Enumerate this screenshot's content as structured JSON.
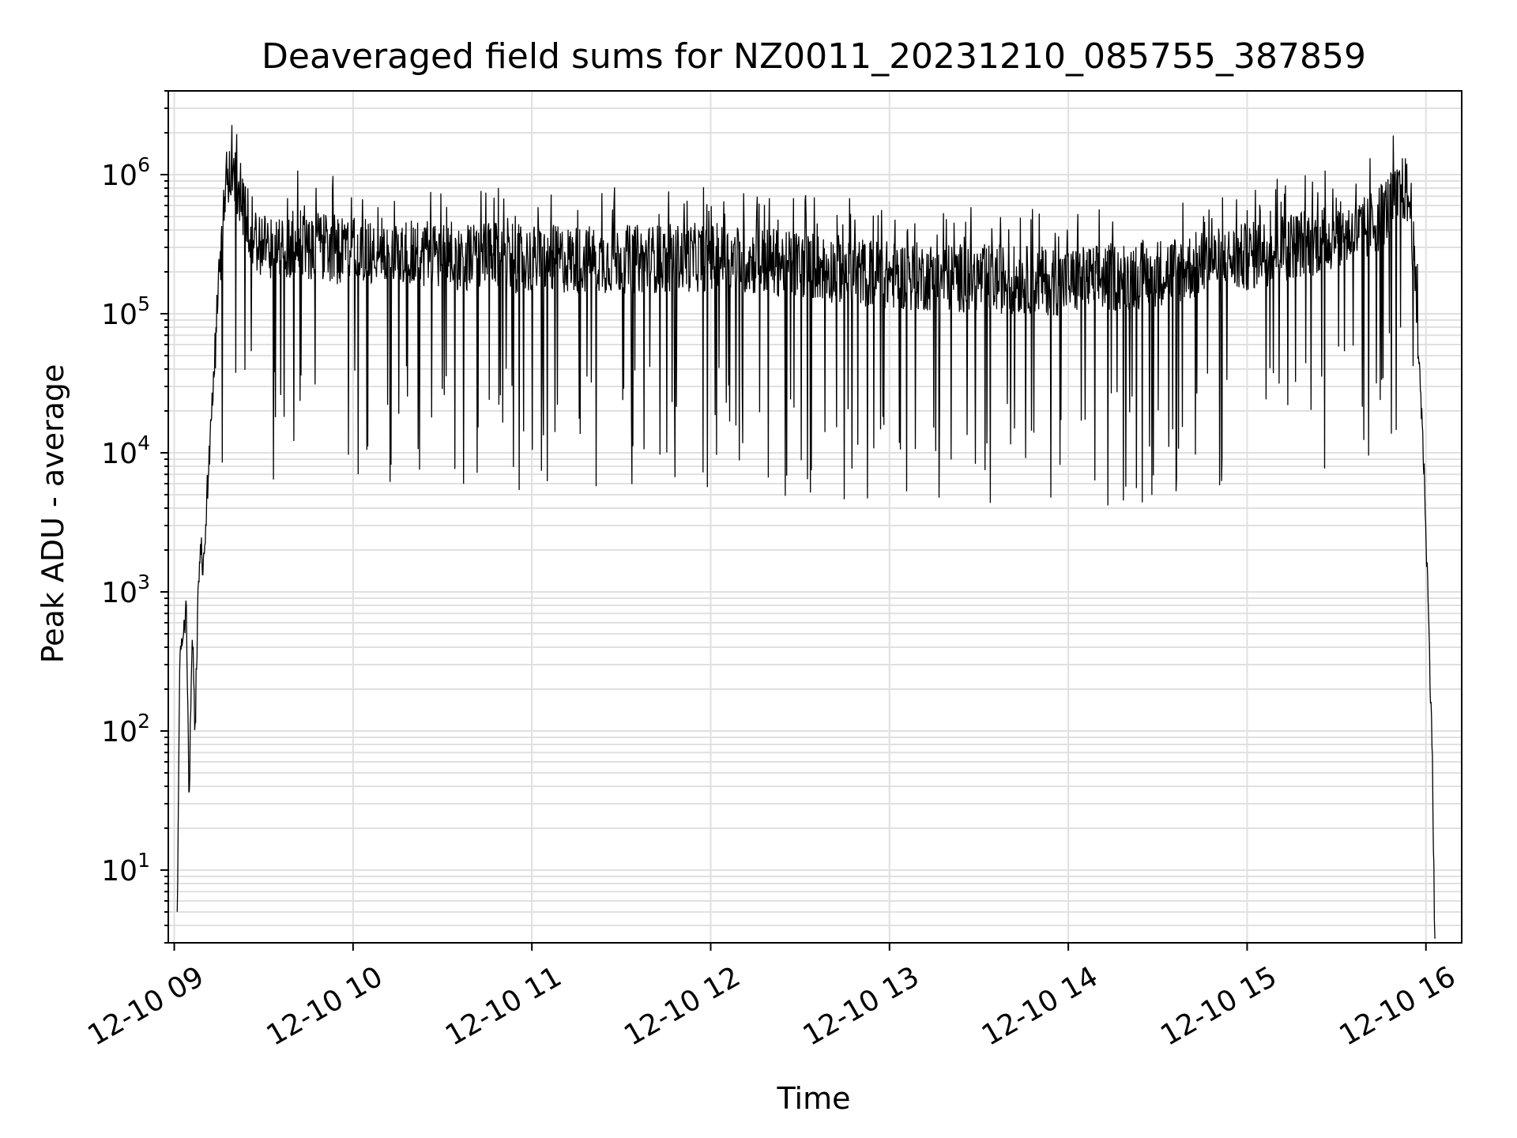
{
  "chart_data": {
    "type": "line",
    "title": "Deaveraged field sums for NZ0011_20231210_085755_387859",
    "xlabel": "Time",
    "ylabel": "Peak ADU - average",
    "yscale": "log",
    "ylim": [
      3,
      4000000
    ],
    "xlim": [
      "2023-12-10 08:58:00",
      "2023-12-10 16:12:00"
    ],
    "grid": true,
    "grid_color": "#e0e0e0",
    "line_color": "#000000",
    "x_ticks": [
      "12-10 09",
      "12-10 10",
      "12-10 11",
      "12-10 12",
      "12-10 13",
      "12-10 14",
      "12-10 15",
      "12-10 16"
    ],
    "y_ticks": [
      {
        "base": "10",
        "exp": "1"
      },
      {
        "base": "10",
        "exp": "2"
      },
      {
        "base": "10",
        "exp": "3"
      },
      {
        "base": "10",
        "exp": "4"
      },
      {
        "base": "10",
        "exp": "5"
      },
      {
        "base": "10",
        "exp": "6"
      }
    ],
    "series": [
      {
        "x": [
          "2023-12-10 09:01:00",
          "2023-12-10 09:02:00",
          "2023-12-10 09:03:00",
          "2023-12-10 09:04:00",
          "2023-12-10 09:05:00",
          "2023-12-10 09:06:00",
          "2023-12-10 09:07:00",
          "2023-12-10 09:08:00",
          "2023-12-10 09:09:00",
          "2023-12-10 09:10:00",
          "2023-12-10 09:11:00",
          "2023-12-10 09:13:00",
          "2023-12-10 09:15:00",
          "2023-12-10 09:17:00",
          "2023-12-10 09:19:00",
          "2023-12-10 09:21:00",
          "2023-12-10 09:23:00",
          "2023-12-10 09:25:00",
          "2023-12-10 09:27:00",
          "2023-12-10 09:29:00",
          "2023-12-10 09:31:00",
          "2023-12-10 09:33:00",
          "2023-12-10 09:35:00",
          "2023-12-10 09:37:00",
          "2023-12-10 09:40:00",
          "2023-12-10 09:45:00",
          "2023-12-10 09:50:00",
          "2023-12-10 09:55:00",
          "2023-12-10 10:00:00",
          "2023-12-10 10:15:00",
          "2023-12-10 10:30:00",
          "2023-12-10 10:45:00",
          "2023-12-10 11:00:00",
          "2023-12-10 11:30:00",
          "2023-12-10 12:00:00",
          "2023-12-10 12:30:00",
          "2023-12-10 13:00:00",
          "2023-12-10 13:30:00",
          "2023-12-10 14:00:00",
          "2023-12-10 14:30:00",
          "2023-12-10 15:00:00",
          "2023-12-10 15:15:00",
          "2023-12-10 15:30:00",
          "2023-12-10 15:40:00",
          "2023-12-10 15:45:00",
          "2023-12-10 15:50:00",
          "2023-12-10 15:53:00",
          "2023-12-10 15:55:00",
          "2023-12-10 15:57:00",
          "2023-12-10 15:59:00",
          "2023-12-10 16:00:00",
          "2023-12-10 16:01:00",
          "2023-12-10 16:02:00",
          "2023-12-10 16:03:00"
        ],
        "y": [
          5,
          500,
          400,
          800,
          30,
          600,
          100,
          1000,
          2000,
          1500,
          5000,
          30000,
          200000,
          600000,
          1200000,
          1000000,
          600000,
          400000,
          450000,
          300000,
          350000,
          300000,
          280000,
          320000,
          350000,
          320000,
          330000,
          300000,
          300000,
          300000,
          280000,
          270000,
          260000,
          260000,
          270000,
          240000,
          200000,
          190000,
          180000,
          210000,
          270000,
          330000,
          380000,
          420000,
          550000,
          700000,
          850000,
          600000,
          100000,
          12000,
          3000,
          500,
          100,
          3
        ]
      }
    ]
  }
}
